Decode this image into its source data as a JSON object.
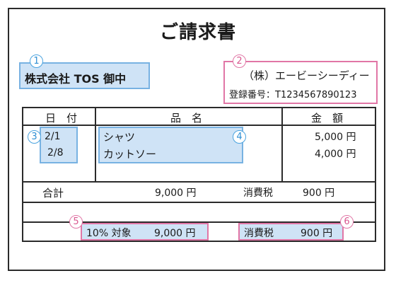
{
  "title": "ご請求書",
  "recipient": {
    "name": "株式会社 TOS 御中",
    "marker": "1"
  },
  "issuer": {
    "name": "（株）エービーシーディー",
    "registration": "登録番号：T1234567890123",
    "marker": "2"
  },
  "table": {
    "headers": {
      "date": "日　付",
      "item": "品　名",
      "amount": "金　額"
    },
    "rows": [
      {
        "date": "2/1",
        "item": "シャツ",
        "amount": "5,000 円"
      },
      {
        "date": "2/8",
        "item": "カットソー",
        "amount": "4,000 円"
      }
    ],
    "total": {
      "label": "合計",
      "amount": "9,000 円",
      "tax_label": "消費税",
      "tax_amount": "900 円"
    },
    "summary": {
      "rate_label": "10% 対象",
      "rate_amount": "9,000 円",
      "tax_label": "消費税",
      "tax_amount": "900 円"
    }
  },
  "markers": {
    "date": "3",
    "item": "4",
    "rate": "5",
    "tax": "6"
  }
}
